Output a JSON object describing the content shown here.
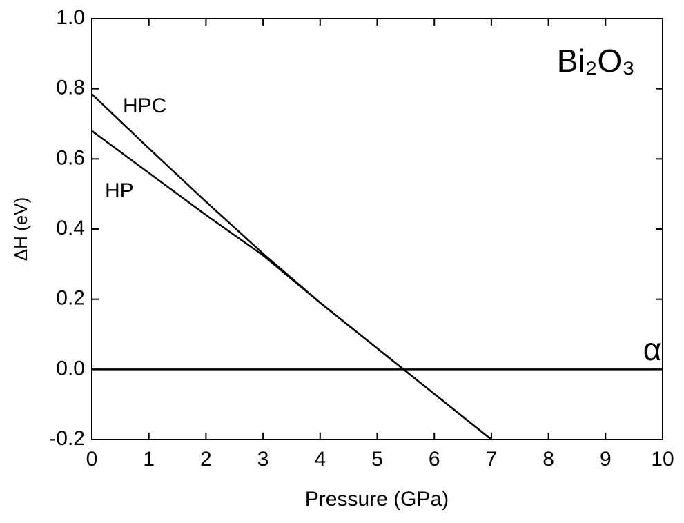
{
  "chart_data": {
    "type": "line",
    "x_label": "Pressure (GPa)",
    "y_label": "ΔH (eV)",
    "annotation": "Bi₂O₃",
    "series": [
      {
        "name": "HPC",
        "color": "#000000",
        "x": [
          0,
          1,
          2,
          3,
          4,
          5,
          6,
          7
        ],
        "values": [
          0.785,
          0.63,
          0.478,
          0.33,
          0.19,
          0.06,
          -0.07,
          -0.2
        ]
      },
      {
        "name": "HP",
        "color": "#000000",
        "x": [
          0,
          1,
          2,
          3,
          4,
          5,
          6,
          7
        ],
        "values": [
          0.68,
          0.56,
          0.44,
          0.325,
          0.19,
          0.06,
          -0.07,
          -0.2
        ]
      },
      {
        "name": "α",
        "color": "#000000",
        "x": [
          0,
          10
        ],
        "values": [
          0,
          0
        ]
      }
    ],
    "xlim": [
      0,
      10
    ],
    "xticks": [
      0,
      1,
      2,
      3,
      4,
      5,
      6,
      7,
      8,
      9,
      10
    ],
    "ylim": [
      -0.2,
      1.0
    ],
    "yticks": [
      -0.2,
      {
        "value": 0,
        "label": "0.0"
      },
      0.2,
      0.4,
      0.6,
      0.8,
      {
        "value": 1,
        "label": "1.0"
      }
    ]
  }
}
